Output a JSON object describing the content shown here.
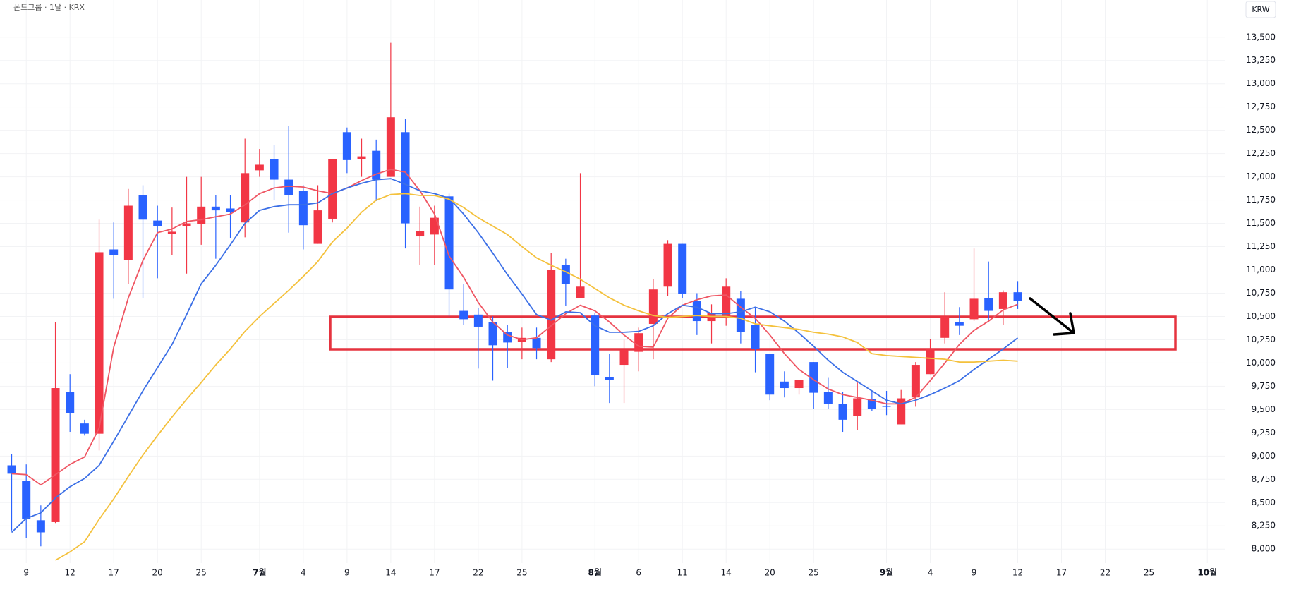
{
  "chart_data": {
    "type": "candlestick",
    "title": "폰드그룹 · 1날 · KRX",
    "currency": "KRW",
    "grid": true,
    "up_color": "#f23645",
    "down_color": "#2962ff",
    "categories": [
      null,
      "9",
      null,
      null,
      "12",
      null,
      null,
      "17",
      null,
      null,
      "20",
      null,
      null,
      "25",
      null,
      null,
      null,
      "7월",
      null,
      null,
      "4",
      null,
      null,
      "9",
      null,
      null,
      "14",
      null,
      null,
      "17",
      null,
      null,
      "22",
      null,
      null,
      "25",
      null,
      null,
      null,
      null,
      "8월",
      null,
      null,
      "6",
      null,
      null,
      "11",
      null,
      null,
      "14",
      null,
      null,
      "20",
      null,
      null,
      "25",
      null,
      null,
      null,
      null,
      "9월",
      null,
      null,
      "4",
      null,
      null,
      "9",
      null,
      null,
      "12",
      null,
      null,
      "17",
      null,
      null,
      "22",
      null,
      null,
      "25",
      null,
      null,
      null,
      "10월",
      null
    ],
    "candles": {
      "open": [
        8900,
        8730,
        8310,
        8290,
        9690,
        9350,
        9240,
        11220,
        11110,
        11800,
        11530,
        11390,
        11470,
        11490,
        11680,
        11660,
        11510,
        12070,
        12190,
        11970,
        11850,
        11280,
        11550,
        12480,
        12190,
        12280,
        12000,
        12480,
        11360,
        11380,
        11790,
        10560,
        10520,
        10440,
        10330,
        10230,
        10270,
        10040,
        11050,
        10700,
        10510,
        9850,
        9980,
        10120,
        10420,
        10820,
        11280,
        10670,
        10450,
        10500,
        10690,
        10410,
        10100,
        9800,
        9730,
        10010,
        9690,
        9560,
        9430,
        9610,
        9540,
        9340,
        9630,
        9880,
        10270,
        10440,
        10470,
        10700,
        10580,
        10760,
        null,
        null,
        null,
        null,
        null,
        null,
        null,
        null,
        null,
        null,
        null,
        null,
        null,
        null
      ],
      "high": [
        9020,
        8910,
        8470,
        10440,
        9880,
        9390,
        11540,
        11510,
        11870,
        11910,
        11690,
        11670,
        12000,
        12000,
        11800,
        11800,
        12410,
        12300,
        12340,
        12550,
        11910,
        11910,
        12190,
        12530,
        12410,
        12400,
        13440,
        12620,
        11680,
        11690,
        11820,
        10850,
        10590,
        10500,
        10410,
        10380,
        10380,
        11180,
        11120,
        12040,
        10540,
        10100,
        10250,
        10380,
        10900,
        11320,
        11280,
        10750,
        10630,
        10910,
        10770,
        10590,
        10100,
        9910,
        9820,
        10010,
        9840,
        9690,
        9790,
        9700,
        9700,
        9710,
        10010,
        10260,
        10760,
        10600,
        11230,
        11090,
        10780,
        10880,
        null,
        null,
        null,
        null,
        null,
        null,
        null,
        null,
        null,
        null,
        null,
        null,
        null,
        null
      ],
      "low": [
        8200,
        8120,
        8030,
        8280,
        9260,
        9220,
        9060,
        10690,
        10850,
        10700,
        10910,
        11160,
        10960,
        11270,
        11120,
        11340,
        11350,
        12000,
        11750,
        11400,
        11220,
        11280,
        11510,
        12040,
        12000,
        11740,
        12000,
        11230,
        11050,
        11050,
        10500,
        10410,
        9940,
        9810,
        9950,
        10040,
        10040,
        10010,
        10610,
        10700,
        9750,
        9570,
        9570,
        9910,
        10040,
        10720,
        10700,
        10300,
        10210,
        10400,
        10210,
        9900,
        9600,
        9630,
        9660,
        9510,
        9510,
        9260,
        9280,
        9480,
        9440,
        9340,
        9530,
        9880,
        10210,
        10300,
        10450,
        10440,
        10410,
        10580,
        null,
        null,
        null,
        null,
        null,
        null,
        null,
        null,
        null,
        null,
        null,
        null,
        null,
        null
      ],
      "close": [
        8810,
        8320,
        8180,
        9730,
        9460,
        9240,
        11190,
        11160,
        11690,
        11540,
        11470,
        11410,
        11500,
        11680,
        11640,
        11620,
        12040,
        12130,
        11970,
        11800,
        11480,
        11640,
        12190,
        12180,
        12220,
        11970,
        12640,
        11500,
        11420,
        11560,
        10790,
        10470,
        10390,
        10190,
        10220,
        10270,
        10160,
        11000,
        10850,
        10820,
        9870,
        9820,
        10140,
        10320,
        10790,
        11280,
        10740,
        10450,
        10540,
        10820,
        10330,
        10150,
        9660,
        9730,
        9820,
        9680,
        9560,
        9390,
        9620,
        9510,
        9530,
        9620,
        9980,
        10150,
        10500,
        10400,
        10690,
        10560,
        10760,
        10670,
        null,
        null,
        null,
        null,
        null,
        null,
        null,
        null,
        null,
        null,
        null,
        null,
        null,
        null
      ]
    },
    "series": [
      {
        "color": "#ef5663",
        "values": [
          8810,
          8800,
          8690,
          8800,
          8910,
          8990,
          9300,
          10170,
          10700,
          11100,
          11400,
          11440,
          11520,
          11540,
          11570,
          11600,
          11700,
          11820,
          11880,
          11900,
          11890,
          11850,
          11820,
          11880,
          11960,
          12030,
          12080,
          12050,
          11850,
          11600,
          11150,
          10920,
          10650,
          10440,
          10300,
          10250,
          10270,
          10400,
          10530,
          10620,
          10560,
          10440,
          10300,
          10180,
          10170,
          10480,
          10620,
          10680,
          10720,
          10730,
          10600,
          10480,
          10300,
          10100,
          9930,
          9820,
          9720,
          9660,
          9630,
          9600,
          9560,
          9560,
          9630,
          9810,
          10000,
          10200,
          10350,
          10450,
          10570,
          10630,
          null,
          null,
          null,
          null,
          null,
          null,
          null,
          null,
          null,
          null,
          null,
          null,
          null,
          null
        ]
      },
      {
        "color": "#3b6fe6",
        "values": [
          8180,
          8330,
          8390,
          8550,
          8670,
          8760,
          8900,
          9160,
          9430,
          9700,
          9950,
          10200,
          10520,
          10850,
          11050,
          11270,
          11500,
          11640,
          11680,
          11700,
          11700,
          11720,
          11820,
          11880,
          11930,
          11970,
          11980,
          11920,
          11850,
          11820,
          11770,
          11600,
          11400,
          11180,
          10950,
          10740,
          10520,
          10460,
          10550,
          10540,
          10400,
          10330,
          10330,
          10340,
          10400,
          10530,
          10620,
          10600,
          10530,
          10530,
          10550,
          10600,
          10550,
          10450,
          10320,
          10180,
          10030,
          9900,
          9800,
          9700,
          9600,
          9560,
          9600,
          9660,
          9730,
          9810,
          9930,
          10040,
          10150,
          10270,
          null,
          null,
          null,
          null,
          null,
          null,
          null,
          null,
          null,
          null,
          null,
          null,
          null,
          null
        ]
      },
      {
        "color": "#f4c13c",
        "values": [
          null,
          null,
          null,
          7880,
          7970,
          8080,
          8320,
          8540,
          8780,
          9010,
          9220,
          9420,
          9610,
          9790,
          9980,
          10150,
          10340,
          10500,
          10640,
          10780,
          10930,
          11090,
          11300,
          11450,
          11620,
          11750,
          11810,
          11820,
          11800,
          11800,
          11760,
          11670,
          11560,
          11470,
          11380,
          11250,
          11130,
          11050,
          10980,
          10900,
          10800,
          10700,
          10620,
          10560,
          10510,
          10490,
          10500,
          10510,
          10500,
          10500,
          10480,
          10420,
          10400,
          10380,
          10360,
          10330,
          10310,
          10280,
          10220,
          10100,
          10080,
          10070,
          10060,
          10050,
          10040,
          10010,
          10010,
          10020,
          10030,
          10020,
          null,
          null,
          null,
          null,
          null,
          null,
          null,
          null,
          null,
          null,
          null,
          null,
          null,
          null
        ]
      }
    ],
    "ylim": [
      7850,
      13900
    ],
    "yticks": [
      {
        "value": 8000,
        "label": "8,000"
      },
      {
        "value": 8250,
        "label": "8,250"
      },
      {
        "value": 8500,
        "label": "8,500"
      },
      {
        "value": 8750,
        "label": "8,750"
      },
      {
        "value": 9000,
        "label": "9,000"
      },
      {
        "value": 9250,
        "label": "9,250"
      },
      {
        "value": 9500,
        "label": "9,500"
      },
      {
        "value": 9750,
        "label": "9,750"
      },
      {
        "value": 10000,
        "label": "10,000"
      },
      {
        "value": 10250,
        "label": "10,250"
      },
      {
        "value": 10500,
        "label": "10,500"
      },
      {
        "value": 10750,
        "label": "10,750"
      },
      {
        "value": 11000,
        "label": "11,000"
      },
      {
        "value": 11250,
        "label": "11,250"
      },
      {
        "value": 11500,
        "label": "11,500"
      },
      {
        "value": 11750,
        "label": "11,750"
      },
      {
        "value": 12000,
        "label": "12,000"
      },
      {
        "value": 12250,
        "label": "12,250"
      },
      {
        "value": 12500,
        "label": "12,500"
      },
      {
        "value": 12750,
        "label": "12,750"
      },
      {
        "value": 13000,
        "label": "13,000"
      },
      {
        "value": 13250,
        "label": "13,250"
      },
      {
        "value": 13500,
        "label": "13,500"
      }
    ]
  }
}
